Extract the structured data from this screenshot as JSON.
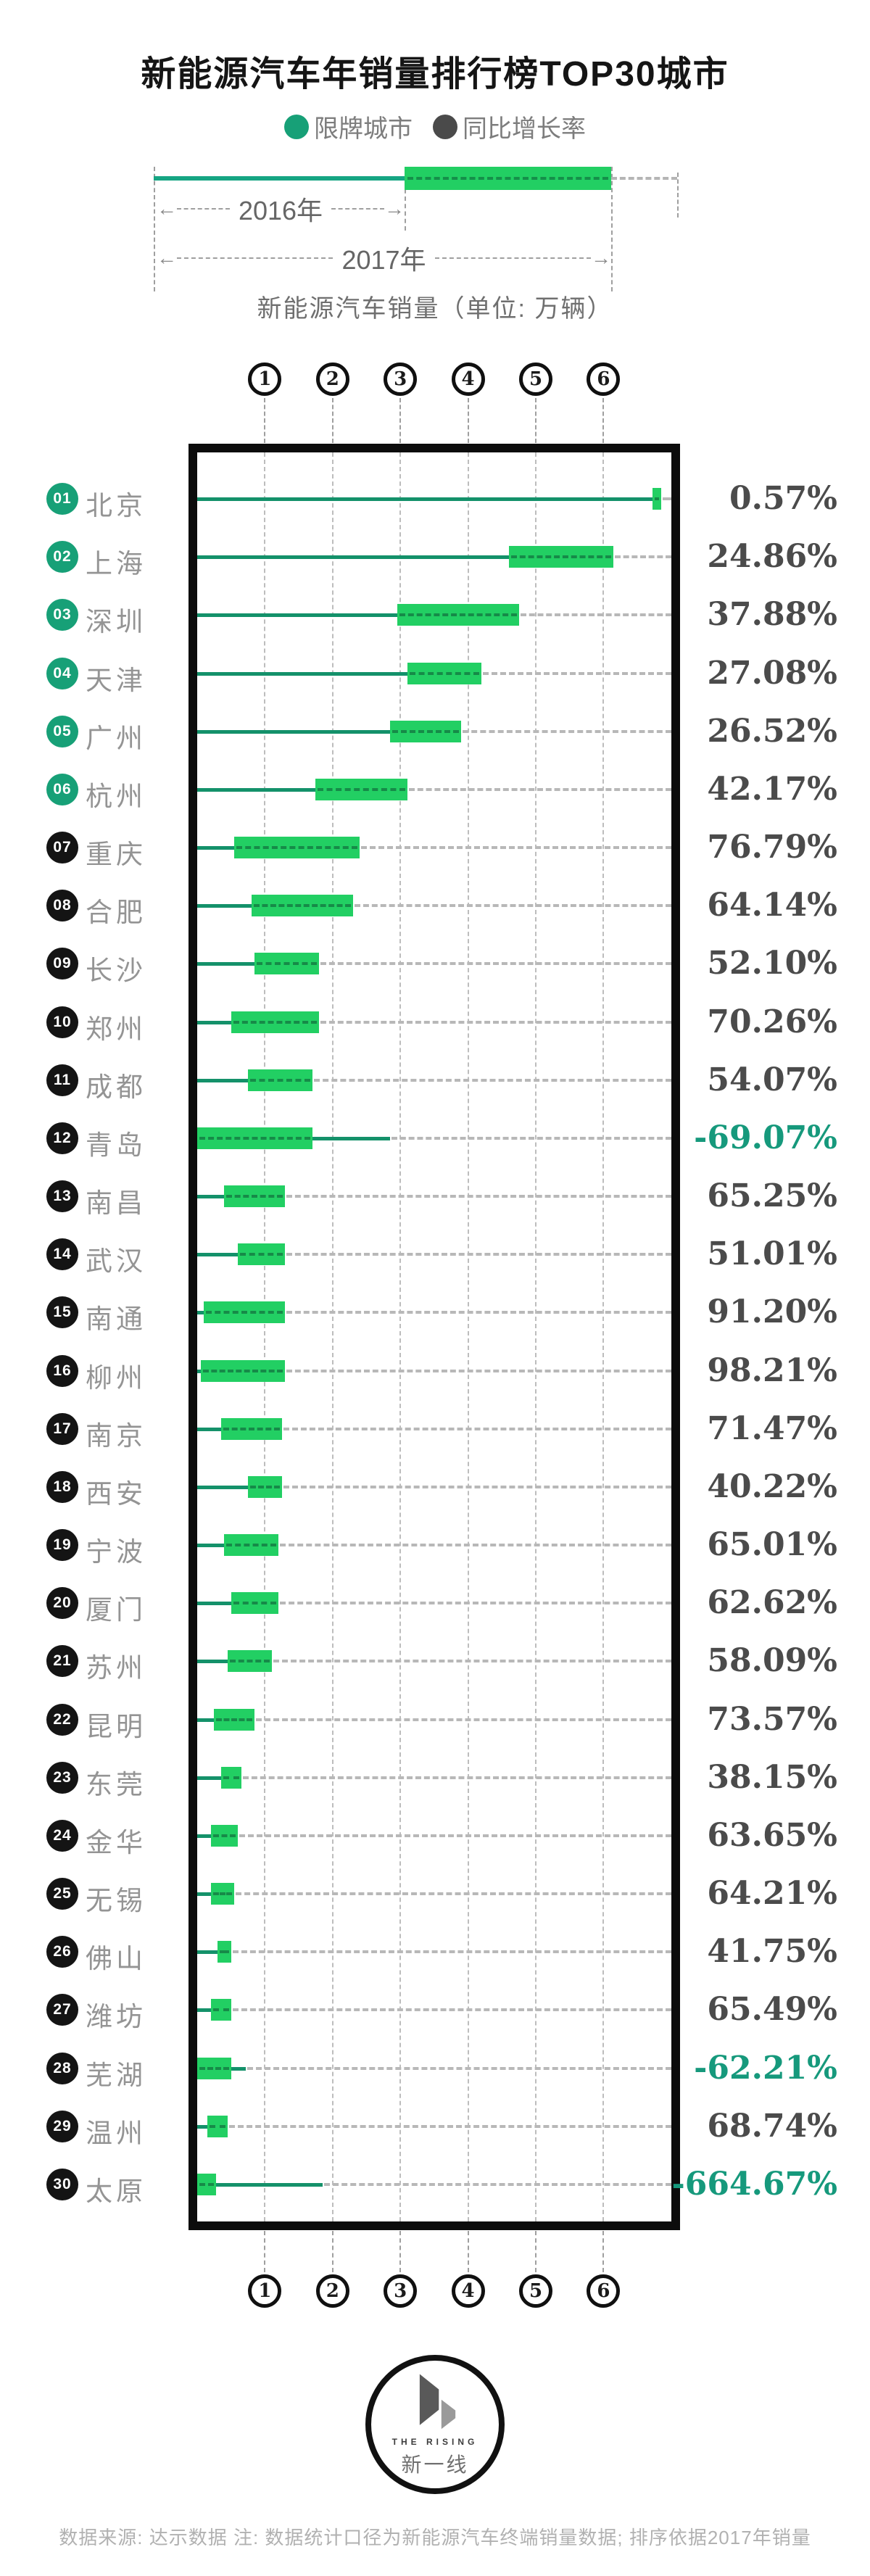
{
  "colors": {
    "bar_green": "#22CF63",
    "line_teal": "#14916A",
    "badge_restricted": "#17A077",
    "badge_normal": "#141414",
    "growth_positive": "#4B4B4B",
    "growth_negative": "#16997C",
    "frame_black": "#0C0C0C",
    "leader_gray": "#B8B8B8"
  },
  "header": {
    "title": "新能源汽车年销量排行榜TOP30城市"
  },
  "legend": {
    "items": [
      {
        "label": "限牌城市",
        "color": "#17A077"
      },
      {
        "label": "同比增长率",
        "color": "#4A4A4A"
      }
    ]
  },
  "sample": {
    "year_2016": "2016年",
    "year_2017": "2017年",
    "arrow_left": "←",
    "arrow_right": "→",
    "axis_note": "新能源汽车销量（单位: 万辆）"
  },
  "chart_data": {
    "type": "bar",
    "orientation": "horizontal",
    "title": "新能源汽车年销量排行榜TOP30城市",
    "xlabel": "新能源汽车销量（单位: 万辆）",
    "x_range": [
      0,
      7
    ],
    "x_ticks": [
      1,
      2,
      3,
      4,
      5,
      6
    ],
    "grid": "dashed-vertical",
    "legend_entries": [
      "限牌城市",
      "同比增长率"
    ],
    "encoding_note": "细线=2016年销量，绿色粗条=2017年销量区间（万辆，按网格估读），右列=同比增长率",
    "rows": [
      {
        "rank": "01",
        "city": "北京",
        "restricted": true,
        "sales_2016_est": 6.7,
        "sales_2017_est": 6.85,
        "yoy_growth": "0.57%",
        "growth_negative": false,
        "bar": {
          "start": 6.72,
          "end": 6.85,
          "line": 6.72
        }
      },
      {
        "rank": "02",
        "city": "上海",
        "restricted": true,
        "sales_2016_est": 4.6,
        "sales_2017_est": 6.15,
        "yoy_growth": "24.86%",
        "growth_negative": false,
        "bar": {
          "start": 4.6,
          "end": 6.15,
          "line": 4.6
        }
      },
      {
        "rank": "03",
        "city": "深圳",
        "restricted": true,
        "sales_2016_est": 2.95,
        "sales_2017_est": 4.75,
        "yoy_growth": "37.88%",
        "growth_negative": false,
        "bar": {
          "start": 2.95,
          "end": 4.75,
          "line": 2.95
        }
      },
      {
        "rank": "04",
        "city": "天津",
        "restricted": true,
        "sales_2016_est": 3.1,
        "sales_2017_est": 4.2,
        "yoy_growth": "27.08%",
        "growth_negative": false,
        "bar": {
          "start": 3.1,
          "end": 4.2,
          "line": 3.1
        }
      },
      {
        "rank": "05",
        "city": "广州",
        "restricted": true,
        "sales_2016_est": 2.85,
        "sales_2017_est": 3.9,
        "yoy_growth": "26.52%",
        "growth_negative": false,
        "bar": {
          "start": 2.85,
          "end": 3.9,
          "line": 2.85
        }
      },
      {
        "rank": "06",
        "city": "杭州",
        "restricted": true,
        "sales_2016_est": 1.75,
        "sales_2017_est": 3.1,
        "yoy_growth": "42.17%",
        "growth_negative": false,
        "bar": {
          "start": 1.75,
          "end": 3.1,
          "line": 1.75
        }
      },
      {
        "rank": "07",
        "city": "重庆",
        "restricted": false,
        "sales_2016_est": 0.55,
        "sales_2017_est": 2.4,
        "yoy_growth": "76.79%",
        "growth_negative": false,
        "bar": {
          "start": 0.55,
          "end": 2.4,
          "line": 0.55
        }
      },
      {
        "rank": "08",
        "city": "合肥",
        "restricted": false,
        "sales_2016_est": 0.8,
        "sales_2017_est": 2.3,
        "yoy_growth": "64.14%",
        "growth_negative": false,
        "bar": {
          "start": 0.8,
          "end": 2.3,
          "line": 0.8
        }
      },
      {
        "rank": "09",
        "city": "长沙",
        "restricted": false,
        "sales_2016_est": 0.85,
        "sales_2017_est": 1.8,
        "yoy_growth": "52.10%",
        "growth_negative": false,
        "bar": {
          "start": 0.85,
          "end": 1.8,
          "line": 0.85
        }
      },
      {
        "rank": "10",
        "city": "郑州",
        "restricted": false,
        "sales_2016_est": 0.5,
        "sales_2017_est": 1.8,
        "yoy_growth": "70.26%",
        "growth_negative": false,
        "bar": {
          "start": 0.5,
          "end": 1.8,
          "line": 0.5
        }
      },
      {
        "rank": "11",
        "city": "成都",
        "restricted": false,
        "sales_2016_est": 0.75,
        "sales_2017_est": 1.7,
        "yoy_growth": "54.07%",
        "growth_negative": false,
        "bar": {
          "start": 0.75,
          "end": 1.7,
          "line": 0.75
        }
      },
      {
        "rank": "12",
        "city": "青岛",
        "restricted": false,
        "sales_2016_est": 2.85,
        "sales_2017_est": 1.7,
        "yoy_growth": "-69.07%",
        "growth_negative": true,
        "bar": {
          "start": 0,
          "end": 1.7,
          "line": 2.85
        }
      },
      {
        "rank": "13",
        "city": "南昌",
        "restricted": false,
        "sales_2016_est": 0.4,
        "sales_2017_est": 1.3,
        "yoy_growth": "65.25%",
        "growth_negative": false,
        "bar": {
          "start": 0.4,
          "end": 1.3,
          "line": 0.4
        }
      },
      {
        "rank": "14",
        "city": "武汉",
        "restricted": false,
        "sales_2016_est": 0.6,
        "sales_2017_est": 1.3,
        "yoy_growth": "51.01%",
        "growth_negative": false,
        "bar": {
          "start": 0.6,
          "end": 1.3,
          "line": 0.6
        }
      },
      {
        "rank": "15",
        "city": "南通",
        "restricted": false,
        "sales_2016_est": 0.1,
        "sales_2017_est": 1.3,
        "yoy_growth": "91.20%",
        "growth_negative": false,
        "bar": {
          "start": 0.1,
          "end": 1.3,
          "line": 0.1
        }
      },
      {
        "rank": "16",
        "city": "柳州",
        "restricted": false,
        "sales_2016_est": 0.05,
        "sales_2017_est": 1.3,
        "yoy_growth": "98.21%",
        "growth_negative": false,
        "bar": {
          "start": 0.05,
          "end": 1.3,
          "line": 0.05
        }
      },
      {
        "rank": "17",
        "city": "南京",
        "restricted": false,
        "sales_2016_est": 0.35,
        "sales_2017_est": 1.25,
        "yoy_growth": "71.47%",
        "growth_negative": false,
        "bar": {
          "start": 0.35,
          "end": 1.25,
          "line": 0.35
        }
      },
      {
        "rank": "18",
        "city": "西安",
        "restricted": false,
        "sales_2016_est": 0.75,
        "sales_2017_est": 1.25,
        "yoy_growth": "40.22%",
        "growth_negative": false,
        "bar": {
          "start": 0.75,
          "end": 1.25,
          "line": 0.75
        }
      },
      {
        "rank": "19",
        "city": "宁波",
        "restricted": false,
        "sales_2016_est": 0.4,
        "sales_2017_est": 1.2,
        "yoy_growth": "65.01%",
        "growth_negative": false,
        "bar": {
          "start": 0.4,
          "end": 1.2,
          "line": 0.4
        }
      },
      {
        "rank": "20",
        "city": "厦门",
        "restricted": false,
        "sales_2016_est": 0.5,
        "sales_2017_est": 1.2,
        "yoy_growth": "62.62%",
        "growth_negative": false,
        "bar": {
          "start": 0.5,
          "end": 1.2,
          "line": 0.5
        }
      },
      {
        "rank": "21",
        "city": "苏州",
        "restricted": false,
        "sales_2016_est": 0.45,
        "sales_2017_est": 1.1,
        "yoy_growth": "58.09%",
        "growth_negative": false,
        "bar": {
          "start": 0.45,
          "end": 1.1,
          "line": 0.45
        }
      },
      {
        "rank": "22",
        "city": "昆明",
        "restricted": false,
        "sales_2016_est": 0.25,
        "sales_2017_est": 0.85,
        "yoy_growth": "73.57%",
        "growth_negative": false,
        "bar": {
          "start": 0.25,
          "end": 0.85,
          "line": 0.25
        }
      },
      {
        "rank": "23",
        "city": "东莞",
        "restricted": false,
        "sales_2016_est": 0.35,
        "sales_2017_est": 0.65,
        "yoy_growth": "38.15%",
        "growth_negative": false,
        "bar": {
          "start": 0.35,
          "end": 0.65,
          "line": 0.35
        }
      },
      {
        "rank": "24",
        "city": "金华",
        "restricted": false,
        "sales_2016_est": 0.2,
        "sales_2017_est": 0.6,
        "yoy_growth": "63.65%",
        "growth_negative": false,
        "bar": {
          "start": 0.2,
          "end": 0.6,
          "line": 0.2
        }
      },
      {
        "rank": "25",
        "city": "无锡",
        "restricted": false,
        "sales_2016_est": 0.2,
        "sales_2017_est": 0.55,
        "yoy_growth": "64.21%",
        "growth_negative": false,
        "bar": {
          "start": 0.2,
          "end": 0.55,
          "line": 0.2
        }
      },
      {
        "rank": "26",
        "city": "佛山",
        "restricted": false,
        "sales_2016_est": 0.3,
        "sales_2017_est": 0.5,
        "yoy_growth": "41.75%",
        "growth_negative": false,
        "bar": {
          "start": 0.3,
          "end": 0.5,
          "line": 0.3
        }
      },
      {
        "rank": "27",
        "city": "潍坊",
        "restricted": false,
        "sales_2016_est": 0.2,
        "sales_2017_est": 0.5,
        "yoy_growth": "65.49%",
        "growth_negative": false,
        "bar": {
          "start": 0.2,
          "end": 0.5,
          "line": 0.2
        }
      },
      {
        "rank": "28",
        "city": "芜湖",
        "restricted": false,
        "sales_2016_est": 0.7,
        "sales_2017_est": 0.5,
        "yoy_growth": "-62.21%",
        "growth_negative": true,
        "bar": {
          "start": 0,
          "end": 0.5,
          "line": 0.72
        }
      },
      {
        "rank": "29",
        "city": "温州",
        "restricted": false,
        "sales_2016_est": 0.15,
        "sales_2017_est": 0.45,
        "yoy_growth": "68.74%",
        "growth_negative": false,
        "bar": {
          "start": 0.15,
          "end": 0.45,
          "line": 0.15
        }
      },
      {
        "rank": "30",
        "city": "太原",
        "restricted": false,
        "sales_2016_est": 1.85,
        "sales_2017_est": 0.3,
        "yoy_growth": "-664.67%",
        "growth_negative": true,
        "bar": {
          "start": 0,
          "end": 0.28,
          "line": 1.85
        }
      }
    ]
  },
  "footer": {
    "logo_en": "THE RISING",
    "logo_cn": "新一线",
    "text": "数据来源: 达示数据  注: 数据统计口径为新能源汽车终端销量数据; 排序依据2017年销量"
  }
}
